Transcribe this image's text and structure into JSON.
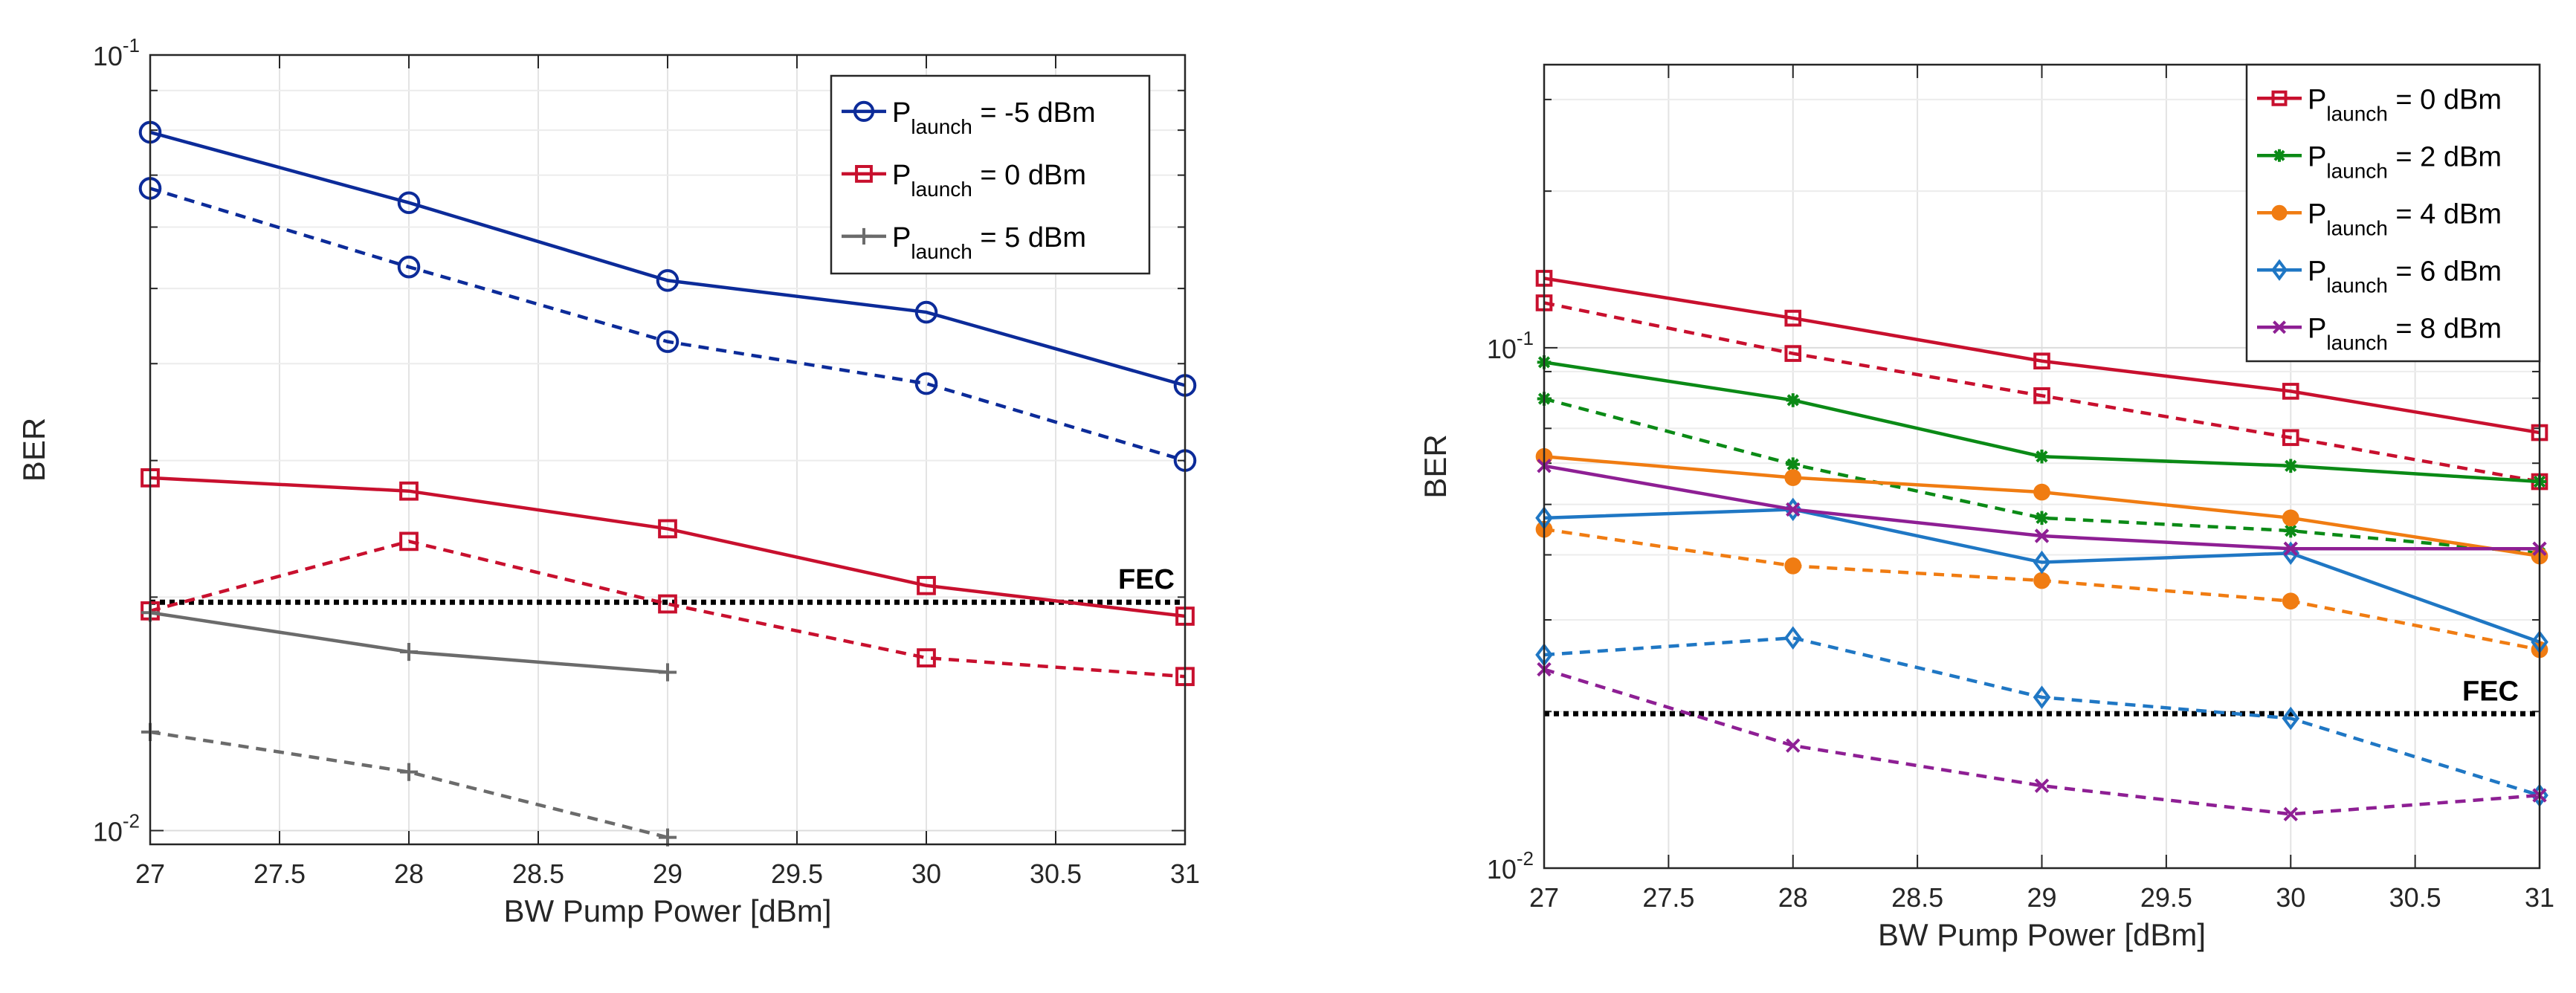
{
  "chart_data": [
    {
      "type": "line",
      "yscale": "log",
      "xlabel": "BW Pump Power [dBm]",
      "ylabel": "BER",
      "xlim": [
        27,
        31
      ],
      "ylim": [
        0.0096,
        0.1
      ],
      "xticks": [
        27,
        27.5,
        28,
        28.5,
        29,
        29.5,
        30,
        30.5,
        31
      ],
      "xtick_labels": [
        "27",
        "27.5",
        "28",
        "28.5",
        "29",
        "29.5",
        "30",
        "30.5",
        "31"
      ],
      "ytick_labels": [
        {
          "value": 0.1,
          "mantissa": "10",
          "exponent": "-1"
        },
        {
          "value": 0.01,
          "mantissa": "10",
          "exponent": "-2"
        }
      ],
      "grid": true,
      "legend_position": "top-right",
      "fec": {
        "value": 0.0197,
        "label": "FEC",
        "color": "#000000"
      },
      "series": [
        {
          "name": "P_launch = -5 dBm",
          "legend_main": "P",
          "legend_sub": "launch",
          "legend_rest": " = -5 dBm",
          "color": "#0c2b99",
          "marker": "circle",
          "dash": "solid",
          "show_in_legend": true,
          "x": [
            27,
            28,
            29,
            30,
            31
          ],
          "y": [
            0.0795,
            0.0645,
            0.0512,
            0.0466,
            0.0375
          ]
        },
        {
          "name": "P_launch = -5 dBm (dashed)",
          "color": "#0c2b99",
          "marker": "circle",
          "dash": "dashed",
          "show_in_legend": false,
          "x": [
            27,
            28,
            29,
            30,
            31
          ],
          "y": [
            0.0673,
            0.0533,
            0.0427,
            0.0377,
            0.03
          ]
        },
        {
          "name": "P_launch = 0 dBm",
          "legend_main": "P",
          "legend_sub": "launch",
          "legend_rest": " = 0 dBm",
          "color": "#c8102e",
          "marker": "square",
          "dash": "solid",
          "show_in_legend": true,
          "x": [
            27,
            28,
            29,
            30,
            31
          ],
          "y": [
            0.0285,
            0.0274,
            0.0245,
            0.0207,
            0.0189
          ]
        },
        {
          "name": "P_launch = 0 dBm (dashed)",
          "color": "#c8102e",
          "marker": "square",
          "dash": "dashed",
          "show_in_legend": false,
          "x": [
            27,
            28,
            29,
            30,
            31
          ],
          "y": [
            0.0192,
            0.0236,
            0.0196,
            0.0167,
            0.0158
          ]
        },
        {
          "name": "P_launch = 5 dBm",
          "legend_main": "P",
          "legend_sub": "launch",
          "legend_rest": " = 5 dBm",
          "color": "#6b6b6b",
          "marker": "plus",
          "dash": "solid",
          "show_in_legend": true,
          "x": [
            27,
            28,
            29
          ],
          "y": [
            0.0191,
            0.017,
            0.016
          ]
        },
        {
          "name": "P_launch = 5 dBm (dashed)",
          "color": "#6b6b6b",
          "marker": "plus",
          "dash": "dashed",
          "show_in_legend": false,
          "x": [
            27,
            28,
            29
          ],
          "y": [
            0.0134,
            0.0119,
            0.0098
          ]
        }
      ]
    },
    {
      "type": "line",
      "yscale": "log",
      "xlabel": "BW Pump Power [dBm]",
      "ylabel": "BER",
      "xlim": [
        27,
        31
      ],
      "ylim": [
        0.01,
        0.35
      ],
      "xticks": [
        27,
        27.5,
        28,
        28.5,
        29,
        29.5,
        30,
        30.5,
        31
      ],
      "xtick_labels": [
        "27",
        "27.5",
        "28",
        "28.5",
        "29",
        "29.5",
        "30",
        "30.5",
        "31"
      ],
      "ytick_labels": [
        {
          "value": 0.1,
          "mantissa": "10",
          "exponent": "-1"
        },
        {
          "value": 0.01,
          "mantissa": "10",
          "exponent": "-2"
        }
      ],
      "grid": true,
      "legend_position": "top-right",
      "fec": {
        "value": 0.0198,
        "label": "FEC",
        "color": "#000000"
      },
      "series": [
        {
          "name": "P_launch = 0 dBm",
          "legend_main": "P",
          "legend_sub": "launch",
          "legend_rest": " = 0 dBm",
          "color": "#c8102e",
          "marker": "square",
          "dash": "solid",
          "show_in_legend": true,
          "x": [
            27,
            28,
            29,
            30,
            31
          ],
          "y": [
            0.136,
            0.114,
            0.0943,
            0.0825,
            0.0687
          ]
        },
        {
          "name": "P_launch = 0 dBm (dashed)",
          "color": "#c8102e",
          "marker": "square",
          "dash": "dashed",
          "show_in_legend": false,
          "x": [
            27,
            28,
            29,
            30,
            31
          ],
          "y": [
            0.122,
            0.0975,
            0.0809,
            0.0672,
            0.0553
          ]
        },
        {
          "name": "P_launch = 2 dBm",
          "legend_main": "P",
          "legend_sub": "launch",
          "legend_rest": " = 2 dBm",
          "color": "#0b8a16",
          "marker": "asterisk",
          "dash": "solid",
          "show_in_legend": true,
          "x": [
            27,
            28,
            29,
            30,
            31
          ],
          "y": [
            0.0938,
            0.0793,
            0.0618,
            0.0593,
            0.0553
          ]
        },
        {
          "name": "P_launch = 2 dBm (dashed)",
          "color": "#0b8a16",
          "marker": "asterisk",
          "dash": "dashed",
          "show_in_legend": false,
          "x": [
            27,
            28,
            29,
            30,
            31
          ],
          "y": [
            0.0798,
            0.0597,
            0.0471,
            0.0445,
            0.0403
          ]
        },
        {
          "name": "P_launch = 4 dBm",
          "legend_main": "P",
          "legend_sub": "launch",
          "legend_rest": " = 4 dBm",
          "color": "#f07c12",
          "marker": "filled-circle",
          "dash": "solid",
          "show_in_legend": true,
          "x": [
            27,
            28,
            29,
            30,
            31
          ],
          "y": [
            0.0618,
            0.0563,
            0.0528,
            0.0471,
            0.0398
          ]
        },
        {
          "name": "P_launch = 4 dBm (dashed)",
          "color": "#f07c12",
          "marker": "filled-circle",
          "dash": "dashed",
          "show_in_legend": false,
          "x": [
            27,
            28,
            29,
            30,
            31
          ],
          "y": [
            0.0448,
            0.0381,
            0.0357,
            0.0326,
            0.0263
          ]
        },
        {
          "name": "P_launch = 6 dBm",
          "legend_main": "P",
          "legend_sub": "launch",
          "legend_rest": " = 6 dBm",
          "color": "#1f77c4",
          "marker": "diamond",
          "dash": "solid",
          "show_in_legend": true,
          "x": [
            27,
            28,
            29,
            30,
            31
          ],
          "y": [
            0.0471,
            0.0489,
            0.0387,
            0.0403,
            0.0272
          ]
        },
        {
          "name": "P_launch = 6 dBm (dashed)",
          "color": "#1f77c4",
          "marker": "diamond",
          "dash": "dashed",
          "show_in_legend": false,
          "x": [
            27,
            28,
            29,
            30,
            31
          ],
          "y": [
            0.0257,
            0.0277,
            0.0213,
            0.0194,
            0.0138
          ]
        },
        {
          "name": "P_launch = 8 dBm",
          "legend_main": "P",
          "legend_sub": "launch",
          "legend_rest": " = 8 dBm",
          "color": "#8e1f94",
          "marker": "x",
          "dash": "solid",
          "show_in_legend": true,
          "x": [
            27,
            28,
            29,
            30,
            31
          ],
          "y": [
            0.0593,
            0.0489,
            0.0435,
            0.0411,
            0.0411
          ]
        },
        {
          "name": "P_launch = 8 dBm (dashed)",
          "color": "#8e1f94",
          "marker": "x",
          "dash": "dashed",
          "show_in_legend": false,
          "x": [
            27,
            28,
            29,
            30,
            31
          ],
          "y": [
            0.0241,
            0.0172,
            0.0144,
            0.0127,
            0.0138
          ]
        }
      ]
    }
  ]
}
